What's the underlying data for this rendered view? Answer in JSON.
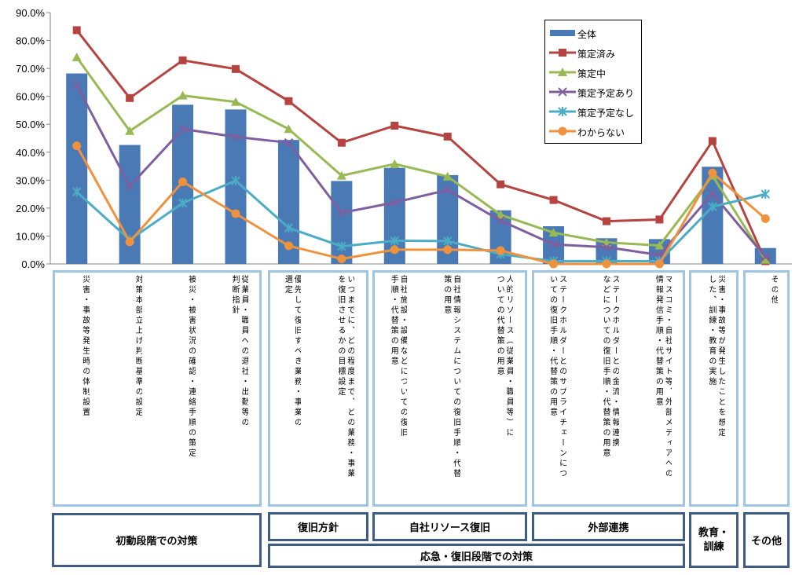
{
  "chart_data": {
    "type": "bar",
    "ylim": [
      0,
      90
    ],
    "yticks": [
      "0.0%",
      "10.0%",
      "20.0%",
      "30.0%",
      "40.0%",
      "50.0%",
      "60.0%",
      "70.0%",
      "80.0%",
      "90.0%"
    ],
    "legend_position": "top-right",
    "grid": false,
    "categories": [
      "災害・事故等発生時の体制設置",
      "対策本部立上げ判断基準の設定",
      "被災・被害状況の確認・連絡手順の策定",
      "従業員・職員への退社・出勤等の判断指針",
      "優先して復旧すべき業務・事業の選定",
      "いつまでに、どの程度まで、どの業務・事業を復旧させるかの目標設定",
      "自社施設・設備などについての復旧手順・代替策の用意",
      "自社情報システムについての復旧手順・代替策の用意",
      "人的リソース（従業員・職員等）についての代替策の用意",
      "ステークホルダーとのサプライチェーンについての復旧手順・代替策の用意",
      "ステークホルダーとの金流・情報連携などについての復旧手順・代替策の用意",
      "マスコミ・自社サイト等、外部メディアへの情報発信手順・代替策の用意",
      "災害・事故等が発生したことを想定した、訓練・教育の実施",
      "その他"
    ],
    "series": [
      {
        "name": "全体",
        "type": "bar",
        "color": "#4a7ab5",
        "values": [
          68.2,
          42.6,
          57.0,
          55.3,
          44.4,
          29.7,
          34.4,
          31.8,
          19.2,
          13.5,
          9.2,
          8.9,
          34.8,
          5.7
        ]
      },
      {
        "name": "策定済み",
        "type": "line",
        "color": "#b5433f",
        "marker": "square",
        "values": [
          83.7,
          59.4,
          72.9,
          69.8,
          58.3,
          43.4,
          49.5,
          45.6,
          28.5,
          22.9,
          15.3,
          15.9,
          44.0,
          1.0
        ]
      },
      {
        "name": "策定中",
        "type": "line",
        "color": "#98b954",
        "marker": "triangle",
        "values": [
          74.0,
          47.6,
          60.3,
          58.0,
          48.3,
          31.6,
          35.8,
          31.3,
          17.6,
          11.2,
          7.7,
          6.6,
          31.6,
          1.5
        ]
      },
      {
        "name": "策定予定あり",
        "type": "line",
        "color": "#7d5fa0",
        "marker": "x",
        "values": [
          64.0,
          27.8,
          48.3,
          45.5,
          43.4,
          18.3,
          22.0,
          26.5,
          15.5,
          7.0,
          6.0,
          3.2,
          25.2,
          2.5
        ]
      },
      {
        "name": "策定予定なし",
        "type": "line",
        "color": "#4bacc6",
        "marker": "star",
        "values": [
          25.8,
          8.6,
          21.8,
          29.8,
          12.9,
          6.3,
          8.3,
          8.2,
          3.5,
          1.0,
          1.0,
          1.0,
          20.5,
          25.0
        ]
      },
      {
        "name": "わからない",
        "type": "line",
        "color": "#f0913e",
        "marker": "circle",
        "values": [
          42.3,
          7.9,
          29.4,
          18.0,
          6.5,
          1.8,
          5.1,
          5.1,
          4.8,
          0.0,
          0.0,
          0.0,
          32.6,
          16.2
        ]
      }
    ]
  },
  "category_labels": [
    "災害・事故等発生時の体制設置",
    "対策本部立上げ判断基準の設定",
    "被災・被害状況の確認・連絡手順の策定",
    "従業員・職員への退社・出勤等の\n判断指針",
    "優先して復旧すべき業務・事業の\n選定",
    "いつまでに、どの程度まで、どの業務・事業\nを復旧させるかの目標設定",
    "自社施設・設備などについての復旧\n手順・代替策の用意",
    "自社情報システムについての復旧手順・代替\n策の用意",
    "人的リソース（従業員・職員等）に\nついての代替策の用意",
    "ステークホルダーとのサプライチェーンにつ\nいての復旧手順・代替策の用意",
    "ステークホルダーとの金流・情報連携\nなどについての復旧手順・代替策の用意",
    "マスコミ・自社サイト等、外部メディアへの\n情報発信手順・代替策の用意",
    "災害・事故等が発生したことを想定\nした、訓練・教育の実施",
    "その他"
  ],
  "groups": {
    "shodo": "初動段階での対策",
    "fukkyu_hoshin": "復旧方針",
    "jisha_resource": "自社リソース復旧",
    "gaibu_renkei": "外部連携",
    "kyoiku_kunren": "教育・\n訓練",
    "sonota": "その他",
    "okyu": "応急・復旧段階での対策"
  },
  "legend": [
    "全体",
    "策定済み",
    "策定中",
    "策定予定あり",
    "策定予定なし",
    "わからない"
  ]
}
